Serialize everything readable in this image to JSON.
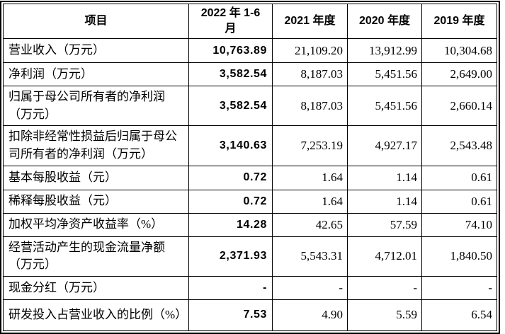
{
  "table": {
    "header": [
      "项目",
      "2022 年 1-6 月",
      "2021 年度",
      "2020 年度",
      "2019 年度"
    ],
    "rows": [
      {
        "label": "营业收入（万元）",
        "values": [
          "10,763.89",
          "21,109.20",
          "13,912.99",
          "10,304.68"
        ]
      },
      {
        "label": "净利润（万元）",
        "values": [
          "3,582.54",
          "8,187.03",
          "5,451.56",
          "2,649.00"
        ]
      },
      {
        "label": "归属于母公司所有者的净利润（万元）",
        "values": [
          "3,582.54",
          "8,187.03",
          "5,451.56",
          "2,660.14"
        ]
      },
      {
        "label": "扣除非经常性损益后归属于母公司所有者的净利润（万元）",
        "values": [
          "3,140.63",
          "7,253.19",
          "4,927.17",
          "2,543.48"
        ]
      },
      {
        "label": "基本每股收益（元）",
        "values": [
          "0.72",
          "1.64",
          "1.14",
          "0.61"
        ]
      },
      {
        "label": "稀释每股收益（元）",
        "values": [
          "0.72",
          "1.64",
          "1.14",
          "0.61"
        ]
      },
      {
        "label": "加权平均净资产收益率（%）",
        "values": [
          "14.28",
          "42.65",
          "57.59",
          "74.10"
        ]
      },
      {
        "label": "经营活动产生的现金流量净额（万元）",
        "values": [
          "2,371.93",
          "5,543.31",
          "4,712.01",
          "1,840.50"
        ]
      },
      {
        "label": "现金分红（万元）",
        "values": [
          "-",
          "-",
          "-",
          "-"
        ]
      },
      {
        "label": "研发投入占营业收入的比例（%）",
        "values": [
          "7.53",
          "4.90",
          "5.59",
          "6.54"
        ]
      }
    ]
  }
}
